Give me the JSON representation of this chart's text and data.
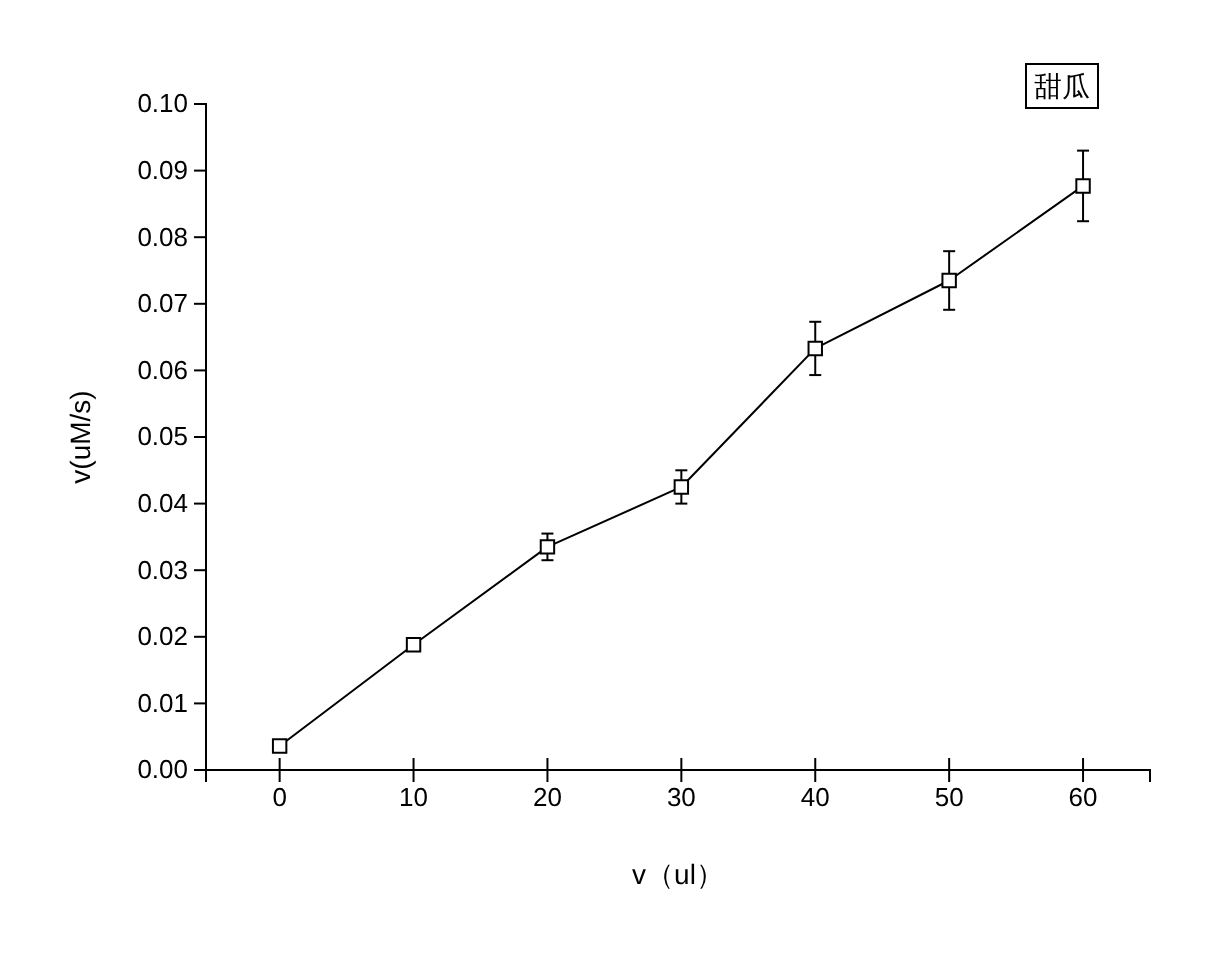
{
  "chart_data": {
    "type": "line",
    "xlabel": "v（ul）",
    "ylabel": "v(uM/s)",
    "x": [
      0,
      10,
      20,
      30,
      40,
      50,
      60
    ],
    "series": [
      {
        "name": "甜瓜",
        "color": "#000000",
        "values": [
          0.0036,
          0.0188,
          0.0335,
          0.0425,
          0.0633,
          0.0735,
          0.0877
        ],
        "errors": [
          0.0005,
          0.0005,
          0.002,
          0.0025,
          0.004,
          0.0044,
          0.0053
        ]
      }
    ],
    "xlim": [
      -5.5,
      65
    ],
    "xticks": [
      0,
      10,
      20,
      30,
      40,
      50,
      60
    ],
    "ylim": [
      0,
      0.1
    ],
    "yticks": [
      {
        "value": 0,
        "label": "0.00"
      },
      {
        "value": 0.01,
        "label": "0.01"
      },
      {
        "value": 0.02,
        "label": "0.02"
      },
      {
        "value": 0.03,
        "label": "0.03"
      },
      {
        "value": 0.04,
        "label": "0.04"
      },
      {
        "value": 0.05,
        "label": "0.05"
      },
      {
        "value": 0.06,
        "label": "0.06"
      },
      {
        "value": 0.07,
        "label": "0.07"
      },
      {
        "value": 0.08,
        "label": "0.08"
      },
      {
        "value": 0.09,
        "label": "0.09"
      },
      {
        "value": 0.1,
        "label": "0.10"
      }
    ],
    "marker": "square",
    "line_style": "solid",
    "legend": "top right",
    "grid": false
  }
}
